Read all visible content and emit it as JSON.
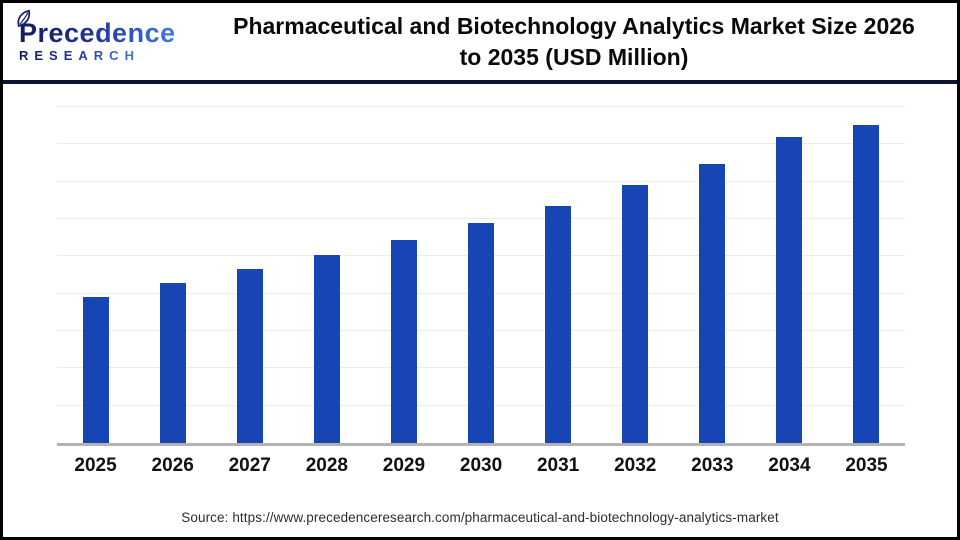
{
  "logo": {
    "brand": "Precedence",
    "sub": "RESEARCH",
    "leaf_icon": "leaf-icon"
  },
  "header": {
    "title_line1": "Pharmaceutical and Biotechnology Analytics Market Size 2026",
    "title_line2": "to 2035 (USD Million)"
  },
  "footer": {
    "source_text": "Source: https://www.precedenceresearch.com/pharmaceutical-and-biotechnology-analytics-market"
  },
  "colors": {
    "bar_blue": "#1746b4",
    "header_rule_navy": "#0e1237",
    "axis_baseline_grey": "#b3b3b3",
    "gridline_grey": "#ececec",
    "logo_navy": "#141a5c",
    "logo_blue": "#3f7fd9",
    "title_black": "#0a0a0a"
  },
  "chart_data": {
    "type": "bar",
    "title": "Pharmaceutical and Biotechnology Analytics Market Size 2026 to 2035 (USD Million)",
    "unit": "USD Million",
    "categories": [
      "2025",
      "2026",
      "2027",
      "2028",
      "2029",
      "2030",
      "2031",
      "2032",
      "2033",
      "2034",
      "2035"
    ],
    "values": [
      3910,
      4290,
      4660,
      5040,
      5440,
      5890,
      6350,
      6910,
      7470,
      8200,
      8520
    ],
    "values_note": "estimated from bar heights; no y-axis labels shown in image",
    "xlabel": "",
    "ylabel": "",
    "ylim": [
      0,
      9000
    ],
    "gridline_step": 1000,
    "grid": "horizontal",
    "legend_position": "none",
    "bar_color": "#1746b4",
    "y_axis_labels_shown": false,
    "data_labels_shown": false
  }
}
